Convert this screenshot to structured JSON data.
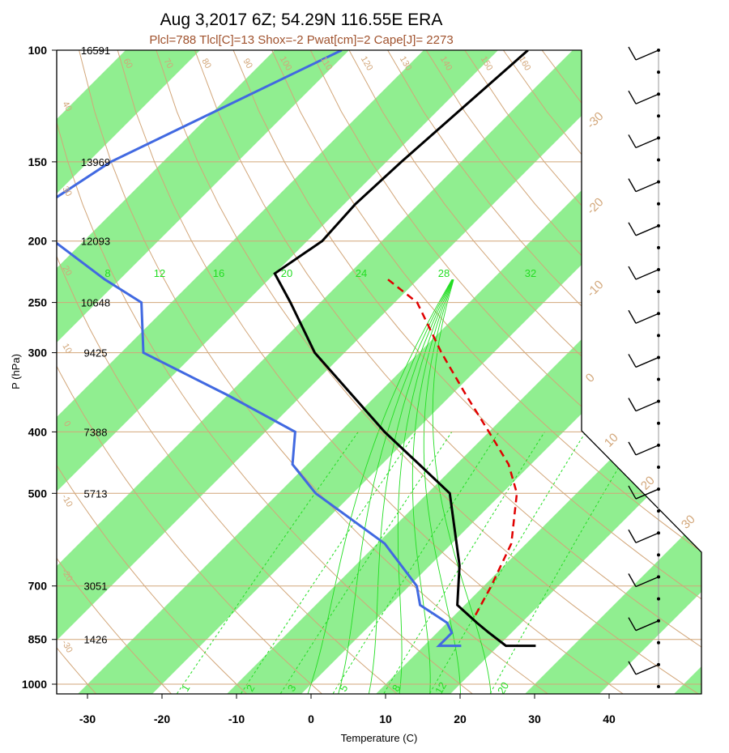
{
  "header": {
    "title": "Aug 3,2017 6Z; 54.29N 116.55E ERA",
    "subtitle": "Plcl=788 Tlcl[C]=13 Shox=-2 Pwat[cm]=2 Cape[J]= 2273"
  },
  "chart_data": {
    "type": "skew-t",
    "xlabel": "Temperature (C)",
    "ylabel": "P (hPa)",
    "x_ticks": [
      "-30",
      "-20",
      "-10",
      "0",
      "10",
      "20",
      "30",
      "40"
    ],
    "y_ticks": [
      "100",
      "150",
      "200",
      "250",
      "300",
      "400",
      "500",
      "700",
      "850",
      "1000"
    ],
    "pressure_levels": [
      100,
      150,
      200,
      250,
      300,
      400,
      500,
      700,
      850,
      1000
    ],
    "heights": [
      "16591",
      "13969",
      "12093",
      "10648",
      "9425",
      "7388",
      "5713",
      "3051",
      "1426",
      ""
    ],
    "temperature_profile": [
      {
        "p": 100,
        "t": -56
      },
      {
        "p": 150,
        "t": -58
      },
      {
        "p": 175,
        "t": -58.5
      },
      {
        "p": 200,
        "t": -58
      },
      {
        "p": 225,
        "t": -60
      },
      {
        "p": 250,
        "t": -54
      },
      {
        "p": 300,
        "t": -44
      },
      {
        "p": 400,
        "t": -24
      },
      {
        "p": 450,
        "t": -15
      },
      {
        "p": 500,
        "t": -7
      },
      {
        "p": 650,
        "t": 4
      },
      {
        "p": 750,
        "t": 9
      },
      {
        "p": 800,
        "t": 14
      },
      {
        "p": 830,
        "t": 17
      },
      {
        "p": 870,
        "t": 21
      },
      {
        "p": 870,
        "t": 25
      }
    ],
    "dewpoint_profile": [
      {
        "p": 100,
        "t": -81
      },
      {
        "p": 150,
        "t": -97
      },
      {
        "p": 175,
        "t": -100
      },
      {
        "p": 200,
        "t": -94
      },
      {
        "p": 230,
        "t": -82
      },
      {
        "p": 250,
        "t": -74
      },
      {
        "p": 300,
        "t": -67
      },
      {
        "p": 350,
        "t": -50
      },
      {
        "p": 400,
        "t": -36
      },
      {
        "p": 450,
        "t": -32
      },
      {
        "p": 500,
        "t": -25
      },
      {
        "p": 600,
        "t": -9
      },
      {
        "p": 700,
        "t": 1
      },
      {
        "p": 750,
        "t": 4
      },
      {
        "p": 800,
        "t": 10
      },
      {
        "p": 830,
        "t": 12
      },
      {
        "p": 850,
        "t": 12
      },
      {
        "p": 870,
        "t": 12
      },
      {
        "p": 870,
        "t": 15
      }
    ],
    "parcel_profile": [
      {
        "p": 230,
        "t": -44
      },
      {
        "p": 250,
        "t": -37
      },
      {
        "p": 300,
        "t": -27
      },
      {
        "p": 350,
        "t": -18
      },
      {
        "p": 400,
        "t": -10
      },
      {
        "p": 450,
        "t": -3
      },
      {
        "p": 500,
        "t": 2
      },
      {
        "p": 600,
        "t": 8
      },
      {
        "p": 700,
        "t": 11
      },
      {
        "p": 788,
        "t": 13
      }
    ],
    "temp_isotherm_labels": [
      "-30",
      "-20",
      "-10",
      "0",
      "10",
      "20",
      "30"
    ],
    "dry_adiabat_labels": [
      "60",
      "70",
      "80",
      "90",
      "100",
      "110",
      "120",
      "130",
      "140",
      "150",
      "160"
    ],
    "dry_adiabat_left_labels": [
      "40",
      "30",
      "20",
      "10",
      "0",
      "-10",
      "-20",
      "-30"
    ],
    "mixing_ratio_top_labels": [
      "8",
      "12",
      "16",
      "20",
      "24",
      "28",
      "32"
    ],
    "mixing_ratio_bottom_labels": [
      "1",
      "2",
      "3",
      "5",
      "8",
      "12",
      "20"
    ],
    "wind_barbs_count": 30
  },
  "colors": {
    "temperature": "#000000",
    "dewpoint": "#4169e1",
    "parcel": "#e00000",
    "band": "#90ee90",
    "adiabat": "#d2a679",
    "mixing_ratio": "#22dd22"
  }
}
